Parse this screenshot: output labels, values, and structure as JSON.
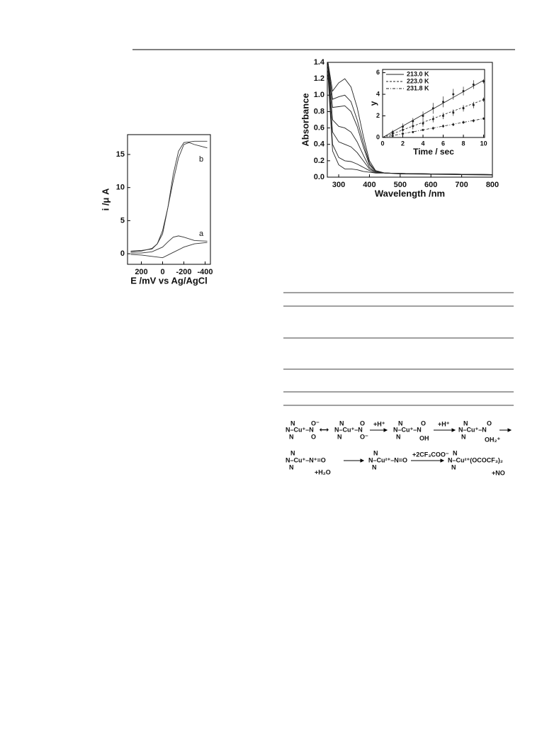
{
  "chart_data": [
    {
      "type": "line",
      "x_label": "E /mV vs Ag/AgCl",
      "y_label": "i /μ A",
      "xlim": [
        330,
        -450
      ],
      "ylim": [
        -1.6,
        18
      ],
      "xticks": [
        200,
        0,
        -200,
        -400
      ],
      "yticks": [
        0,
        5,
        10,
        15
      ],
      "color": "#333",
      "annotations": [
        "b",
        "a"
      ],
      "series": [
        {
          "x": [
            300,
            200,
            100,
            50,
            0,
            -50,
            -100,
            -150,
            -200,
            -250,
            -300,
            -350,
            -420
          ],
          "values": [
            0.3,
            0.4,
            0.8,
            1.5,
            3,
            7,
            12,
            15.5,
            16.8,
            16.9,
            17,
            17,
            17
          ]
        },
        {
          "x": [
            -420,
            -350,
            -300,
            -250,
            -200,
            -150,
            -100,
            -50,
            0,
            50,
            100,
            200,
            300
          ],
          "values": [
            16,
            16.3,
            16.5,
            16.8,
            16.5,
            14.5,
            11,
            7,
            3.5,
            1.5,
            0.7,
            0.5,
            0.4
          ]
        },
        {
          "x": [
            300,
            200,
            100,
            0,
            -50,
            -100,
            -150,
            -200,
            -300,
            -420
          ],
          "values": [
            0.1,
            0.1,
            0.3,
            1,
            1.8,
            2.5,
            2.7,
            2.5,
            2,
            1.9
          ]
        },
        {
          "x": [
            -420,
            -300,
            -200,
            -100,
            0,
            100,
            200,
            300
          ],
          "values": [
            1.7,
            1.5,
            1.0,
            0.2,
            -0.6,
            -0.4,
            -0.2,
            -0.1
          ]
        }
      ]
    },
    {
      "type": "line",
      "x_label": "Wavelength /nm",
      "y_label": "Absorbance",
      "xlim": [
        263,
        800
      ],
      "ylim": [
        0,
        1.4
      ],
      "xticks": [
        300,
        400,
        500,
        600,
        700,
        800
      ],
      "yticks": [
        {
          "value": 0,
          "label": "0.0"
        },
        {
          "value": 0.2,
          "label": "0.2"
        },
        {
          "value": 0.4,
          "label": "0.4"
        },
        {
          "value": 0.6,
          "label": "0.6"
        },
        {
          "value": 0.8,
          "label": "0.8"
        },
        {
          "value": 1,
          "label": "1.0"
        },
        {
          "value": 1.2,
          "label": "1.2"
        },
        {
          "value": 1.4,
          "label": "1.4"
        }
      ],
      "color": "#222",
      "x": [
        265,
        280,
        300,
        320,
        340,
        360,
        380,
        400,
        420,
        450,
        500,
        600,
        700,
        800
      ],
      "series": [
        {
          "values": [
            1.4,
            1.05,
            1.15,
            1.2,
            1.1,
            0.85,
            0.5,
            0.2,
            0.08,
            0.05,
            0.045,
            0.04,
            0.035,
            0.03
          ]
        },
        {
          "values": [
            1.4,
            0.95,
            0.98,
            1.0,
            0.92,
            0.7,
            0.42,
            0.17,
            0.07,
            0.05,
            0.045,
            0.04,
            0.035,
            0.03
          ]
        },
        {
          "values": [
            1.4,
            0.85,
            0.86,
            0.87,
            0.8,
            0.62,
            0.37,
            0.15,
            0.07,
            0.05,
            0.045,
            0.04,
            0.035,
            0.03
          ]
        },
        {
          "values": [
            1.38,
            0.7,
            0.62,
            0.6,
            0.55,
            0.43,
            0.27,
            0.12,
            0.06,
            0.05,
            0.045,
            0.04,
            0.035,
            0.03
          ]
        },
        {
          "values": [
            1.35,
            0.55,
            0.43,
            0.4,
            0.37,
            0.3,
            0.2,
            0.1,
            0.06,
            0.05,
            0.045,
            0.04,
            0.035,
            0.03
          ]
        },
        {
          "values": [
            1.3,
            0.4,
            0.24,
            0.2,
            0.19,
            0.16,
            0.12,
            0.08,
            0.05,
            0.05,
            0.045,
            0.04,
            0.035,
            0.03
          ]
        },
        {
          "values": [
            1.25,
            0.32,
            0.15,
            0.1,
            0.1,
            0.09,
            0.07,
            0.06,
            0.05,
            0.05,
            0.04,
            0.035,
            0.03,
            0.025
          ]
        }
      ]
    },
    {
      "type": "scatter",
      "x_label": "Time / sec",
      "y_label": "y",
      "xlim": [
        0,
        10.1
      ],
      "ylim": [
        0,
        6.3
      ],
      "xticks": [
        0,
        2,
        4,
        6,
        8,
        10
      ],
      "yticks": [
        0,
        2,
        4,
        6
      ],
      "legend": "upper left",
      "color": "#222",
      "fit_x": [
        0,
        10
      ],
      "series": [
        {
          "name": "213.0 K",
          "dash": "solid",
          "x": [
            1,
            2,
            3,
            4,
            5,
            6,
            7,
            8,
            9,
            10
          ],
          "values": [
            0.5,
            1.0,
            1.5,
            2.0,
            2.7,
            3.3,
            4.0,
            4.3,
            4.9,
            5.2
          ],
          "errors": [
            0.2,
            0.3,
            0.3,
            0.4,
            0.5,
            0.5,
            0.5,
            0.4,
            0.4,
            0.2
          ],
          "fit": [
            0,
            5.3
          ]
        },
        {
          "name": "223.0 K",
          "dash": "dashed",
          "x": [
            1,
            2,
            3,
            4,
            5,
            6,
            7,
            8,
            9,
            10
          ],
          "values": [
            0.35,
            0.7,
            1.05,
            1.3,
            1.7,
            2.0,
            2.3,
            2.7,
            3.0,
            3.5
          ],
          "errors": [
            0.2,
            0.2,
            0.3,
            0.3,
            0.3,
            0.3,
            0.3,
            0.3,
            0.3,
            0.2
          ],
          "fit": [
            0,
            3.5
          ]
        },
        {
          "name": "231.8 K",
          "dash": "dashdot",
          "x": [
            1,
            2,
            3,
            4,
            5,
            6,
            7,
            8,
            9,
            10
          ],
          "values": [
            0.15,
            0.35,
            0.5,
            0.7,
            0.85,
            1.05,
            1.2,
            1.4,
            1.55,
            1.75
          ],
          "errors": [
            0.1,
            0.1,
            0.1,
            0.1,
            0.15,
            0.15,
            0.15,
            0.15,
            0.15,
            0.1
          ],
          "fit": [
            0,
            1.75
          ]
        }
      ]
    }
  ],
  "scheme": {
    "fragments": [
      "N",
      "N–Cu⁺–N",
      "N",
      "O⁻",
      "O",
      "⟷",
      "N",
      "N–Cu⁺–N",
      "N",
      "O",
      "O⁻",
      "+H⁺",
      "N",
      "N–Cu⁺–N",
      "N",
      "O",
      "OH",
      "+H⁺",
      "N",
      "N–Cu⁺–N",
      "N",
      "O",
      "OH₂⁺",
      "N",
      "N–Cu⁺–N⁺=O",
      "N",
      "+H₂O",
      "N",
      "N–Cu²⁺–N=O",
      "N",
      "+2CF₃COO⁻",
      "N",
      "N–Cu²⁺(OCOCF₃)₂",
      "N",
      "+NO"
    ]
  }
}
